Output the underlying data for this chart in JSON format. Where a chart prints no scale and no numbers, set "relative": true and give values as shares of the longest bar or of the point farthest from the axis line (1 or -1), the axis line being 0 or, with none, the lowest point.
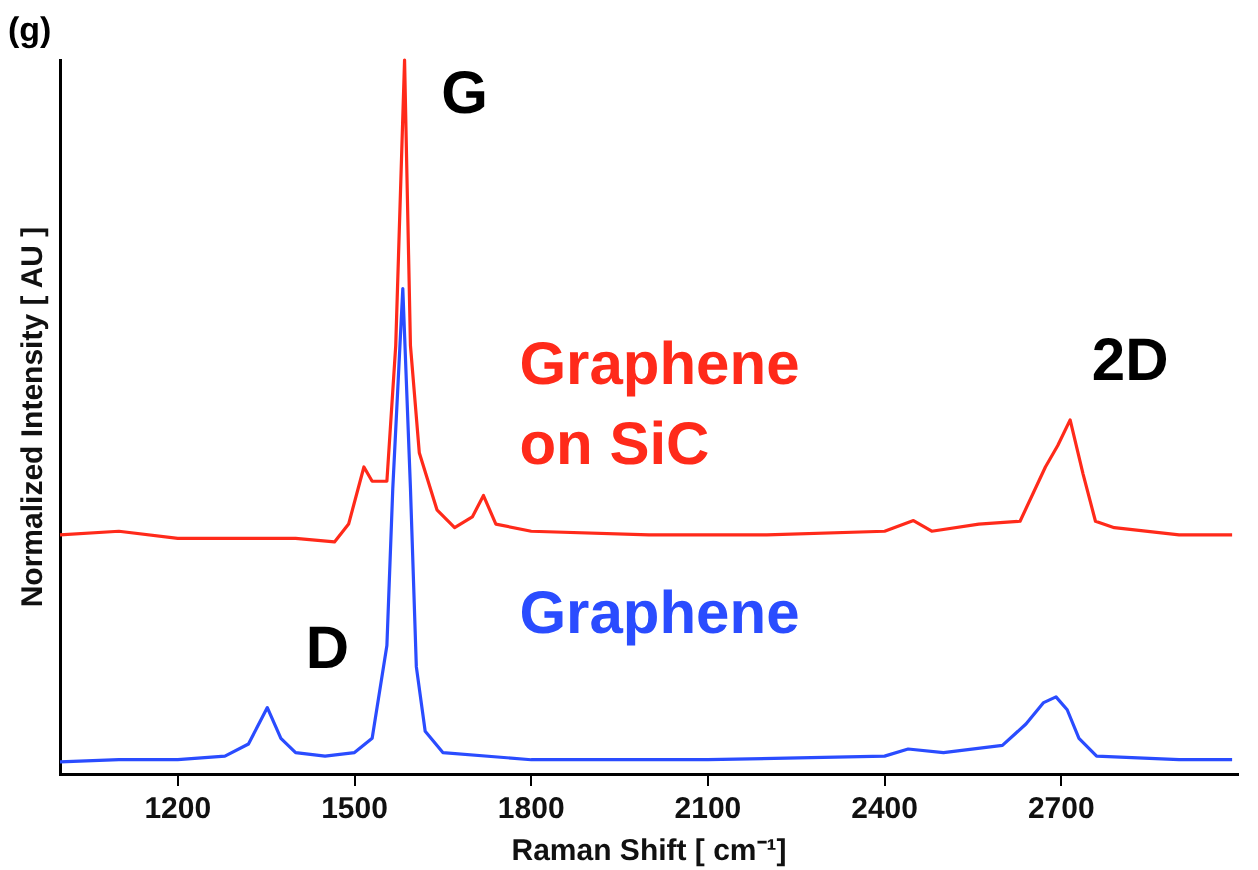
{
  "chart_data": {
    "type": "line",
    "relative": true,
    "xlabel": "Raman Shift [ cm⁻¹]",
    "ylabel": "Normalized Intensity [ AU ]",
    "xlim": [
      1000,
      3000
    ],
    "xticks": [
      1200,
      1500,
      1800,
      2100,
      2400,
      2700
    ],
    "grid": false,
    "legend": false,
    "marker": "none",
    "line_style": "solid",
    "annotations": [
      "(g)",
      {
        "text": "G",
        "x": 1585,
        "y": 1
      },
      {
        "text": "D",
        "x": 1352,
        "y": 0.093
      },
      {
        "text": "2D",
        "x": 2715,
        "y": 0.496
      }
    ],
    "series": [
      {
        "name": "Graphene on SiC",
        "color": "#ff2a1a",
        "x": [
          1000,
          1100,
          1200,
          1300,
          1400,
          1466,
          1490,
          1516,
          1530,
          1555,
          1570,
          1585,
          1595,
          1610,
          1640,
          1670,
          1700,
          1719,
          1740,
          1800,
          2000,
          2200,
          2400,
          2449,
          2480,
          2560,
          2630,
          2673,
          2694,
          2715,
          2737,
          2758,
          2790,
          2900,
          2990
        ],
        "values": [
          0.335,
          0.34,
          0.33,
          0.33,
          0.33,
          0.325,
          0.35,
          0.43,
          0.41,
          0.41,
          0.6,
          1,
          0.6,
          0.45,
          0.37,
          0.345,
          0.36,
          0.39,
          0.35,
          0.34,
          0.335,
          0.335,
          0.34,
          0.355,
          0.34,
          0.35,
          0.354,
          0.43,
          0.46,
          0.496,
          0.42,
          0.354,
          0.345,
          0.335,
          0.335
        ]
      },
      {
        "name": "Graphene",
        "color": "#2a4cff",
        "x": [
          1000,
          1100,
          1200,
          1280,
          1320,
          1352,
          1375,
          1400,
          1450,
          1500,
          1530,
          1555,
          1565,
          1582,
          1595,
          1605,
          1620,
          1650,
          1800,
          2100,
          2400,
          2440,
          2500,
          2600,
          2640,
          2670,
          2691,
          2710,
          2730,
          2760,
          2900,
          2990
        ],
        "values": [
          0.017,
          0.02,
          0.02,
          0.025,
          0.042,
          0.093,
          0.05,
          0.03,
          0.025,
          0.03,
          0.05,
          0.18,
          0.4,
          0.68,
          0.4,
          0.15,
          0.06,
          0.03,
          0.02,
          0.02,
          0.025,
          0.035,
          0.03,
          0.04,
          0.07,
          0.1,
          0.108,
          0.09,
          0.05,
          0.025,
          0.02,
          0.02
        ]
      }
    ]
  }
}
